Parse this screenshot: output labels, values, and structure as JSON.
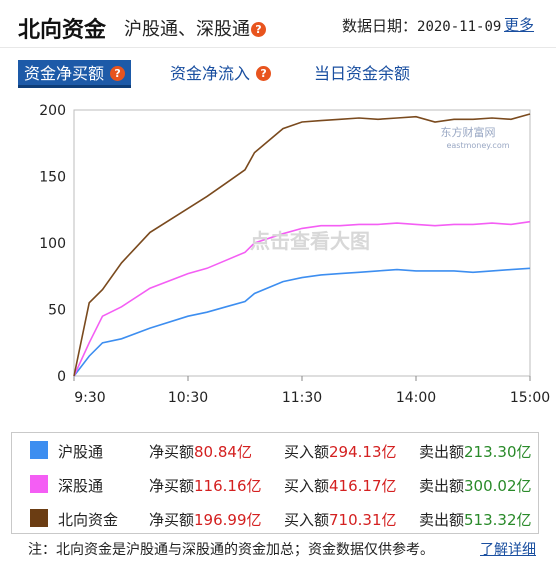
{
  "header": {
    "title": "北向资金",
    "subtitle": "沪股通、深股通",
    "date_label": "数据日期：",
    "date_value": "2020-11-09",
    "more_label": "更多"
  },
  "tabs": [
    {
      "label": "资金净买额",
      "active": true
    },
    {
      "label": "资金净流入",
      "active": false
    },
    {
      "label": "当日资金余额",
      "active": false
    }
  ],
  "watermark": {
    "center_text": "点击查看大图",
    "brand_text": "东方财富网",
    "brand_sub": "eastmoney.com"
  },
  "chart_data": {
    "type": "line",
    "x_ticks": [
      "9:30",
      "10:30",
      "11:30",
      "14:00",
      "15:00"
    ],
    "y_ticks": [
      0,
      50,
      100,
      150,
      200
    ],
    "ylim": [
      0,
      200
    ],
    "grid": false,
    "series": [
      {
        "name": "沪股通",
        "color": "#3d8ef0",
        "x": [
          0,
          8,
          15,
          25,
          40,
          60,
          70,
          80,
          90,
          95,
          110,
          120,
          130,
          140,
          150,
          160,
          170,
          180,
          190,
          200,
          210,
          220,
          230,
          240
        ],
        "values": [
          0,
          15,
          25,
          28,
          36,
          45,
          48,
          52,
          56,
          62,
          71,
          74,
          76,
          77,
          78,
          79,
          80,
          79,
          79,
          79,
          78,
          79,
          80,
          81
        ]
      },
      {
        "name": "深股通",
        "color": "#f45ef4",
        "x": [
          0,
          8,
          15,
          25,
          40,
          60,
          70,
          80,
          90,
          95,
          110,
          120,
          130,
          140,
          150,
          160,
          170,
          180,
          190,
          200,
          210,
          220,
          230,
          240
        ],
        "values": [
          0,
          25,
          45,
          52,
          66,
          77,
          81,
          87,
          93,
          100,
          107,
          111,
          113,
          113,
          114,
          114,
          115,
          114,
          113,
          114,
          114,
          115,
          114,
          116
        ]
      },
      {
        "name": "北向资金",
        "color": "#7a4a1e",
        "x": [
          0,
          8,
          15,
          25,
          40,
          60,
          70,
          80,
          90,
          95,
          110,
          120,
          130,
          140,
          150,
          160,
          170,
          180,
          190,
          200,
          210,
          220,
          230,
          240
        ],
        "values": [
          0,
          55,
          65,
          85,
          108,
          126,
          135,
          145,
          155,
          168,
          186,
          191,
          192,
          193,
          194,
          193,
          194,
          195,
          191,
          193,
          193,
          194,
          193,
          197
        ]
      }
    ]
  },
  "legend": [
    {
      "name": "沪股通",
      "color": "#3d8ef0",
      "net_label": "净买额",
      "net_value": "80.84亿",
      "buy_label": "买入额",
      "buy_value": "294.13亿",
      "sell_label": "卖出额",
      "sell_value": "213.30亿"
    },
    {
      "name": "深股通",
      "color": "#f45ef4",
      "net_label": "净买额",
      "net_value": "116.16亿",
      "buy_label": "买入额",
      "buy_value": "416.17亿",
      "sell_label": "卖出额",
      "sell_value": "300.02亿"
    },
    {
      "name": "北向资金",
      "color": "#6b3d13",
      "net_label": "净买额",
      "net_value": "196.99亿",
      "buy_label": "买入额",
      "buy_value": "710.31亿",
      "sell_label": "卖出额",
      "sell_value": "513.32亿"
    }
  ],
  "footer": {
    "note": "注：北向资金是沪股通与深股通的资金加总；资金数据仅供参考。",
    "detail_label": "了解详细"
  }
}
